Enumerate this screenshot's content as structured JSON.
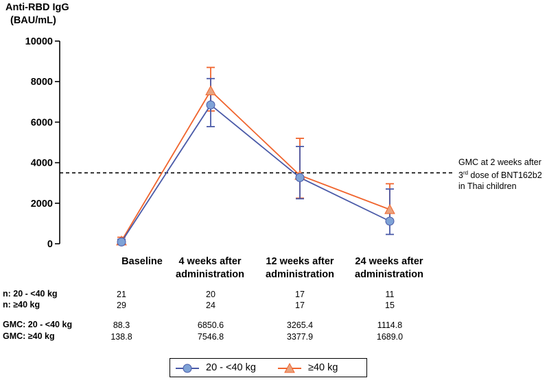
{
  "chart_data": {
    "type": "line",
    "ylabel_line1": "Anti-RBD IgG",
    "ylabel_line2": "(BAU/mL)",
    "ylim": [
      0,
      10000
    ],
    "yticks": [
      0,
      2000,
      4000,
      6000,
      8000,
      10000
    ],
    "categories": [
      {
        "line1": "Baseline",
        "line2": ""
      },
      {
        "line1": "4 weeks after",
        "line2": "administration"
      },
      {
        "line1": "12 weeks after",
        "line2": "administration"
      },
      {
        "line1": "24 weeks after",
        "line2": "administration"
      }
    ],
    "series": [
      {
        "name": "20 - <40 kg",
        "color": "#4A5AA8",
        "marker": "circle",
        "marker_fill": "#7EA2D6",
        "values": [
          88.3,
          6850.6,
          3265.4,
          1114.8
        ],
        "err_low": [
          30,
          5780,
          2220,
          460
        ],
        "err_high": [
          220,
          8150,
          4800,
          2700
        ]
      },
      {
        "name": "≥40 kg",
        "color": "#F0642D",
        "marker": "triangle",
        "marker_fill": "#E9A27E",
        "values": [
          138.8,
          7546.8,
          3377.9,
          1689.0
        ],
        "err_low": [
          60,
          6550,
          2250,
          1150
        ],
        "err_high": [
          320,
          8700,
          5200,
          2960
        ]
      }
    ],
    "reference_line": {
      "value": 3500,
      "label_line1": "GMC at 2 weeks after",
      "label_line2_pre": "3",
      "label_line2_sup": "rd",
      "label_line2_post": " dose of BNT162b2",
      "label_line3": "in Thai children"
    }
  },
  "table": {
    "n_label_1": "n: 20 - <40 kg",
    "n_label_2": "n: ≥40 kg",
    "n_1": [
      "21",
      "20",
      "17",
      "11"
    ],
    "n_2": [
      "29",
      "24",
      "17",
      "15"
    ],
    "gmc_label_1": "GMC: 20 - <40 kg",
    "gmc_label_2": "GMC: ≥40 kg",
    "gmc_1": [
      "88.3",
      "6850.6",
      "3265.4",
      "1114.8"
    ],
    "gmc_2": [
      "138.8",
      "7546.8",
      "3377.9",
      "1689.0"
    ]
  },
  "legend": {
    "item_1": "20 - <40 kg",
    "item_2": "≥40 kg"
  }
}
